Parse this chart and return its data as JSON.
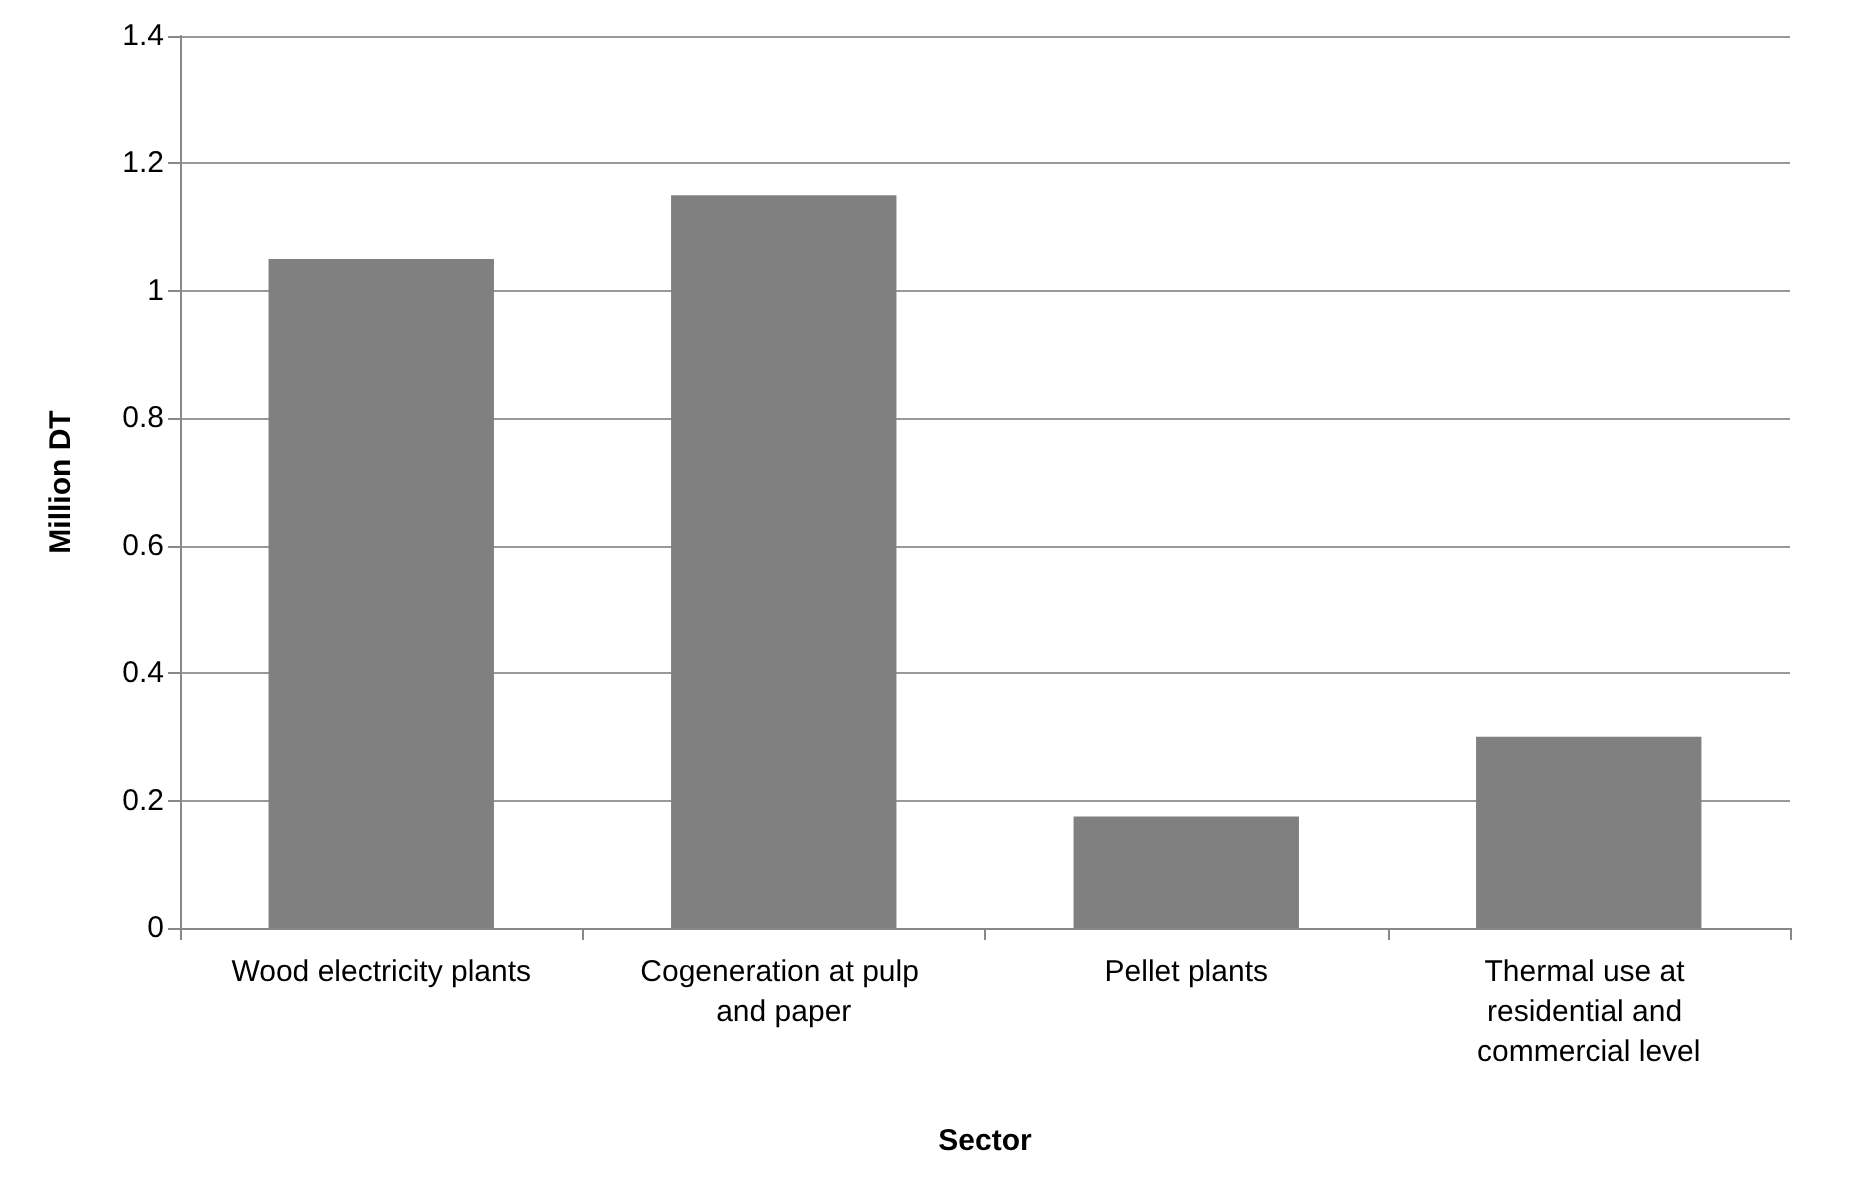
{
  "chart_data": {
    "type": "bar",
    "xlabel": "Sector",
    "ylabel": "Million DT",
    "categories": [
      "Wood electricity plants",
      "Cogeneration at pulp and paper",
      "Pellet plants",
      "Thermal use at residential and commercial level"
    ],
    "values": [
      1.05,
      1.15,
      0.175,
      0.3
    ],
    "color": "#808080",
    "ylim": [
      0,
      1.4
    ],
    "yticks": [
      0,
      0.2,
      0.4,
      0.6,
      0.8,
      1,
      1.2,
      1.4
    ],
    "grid": "y"
  }
}
